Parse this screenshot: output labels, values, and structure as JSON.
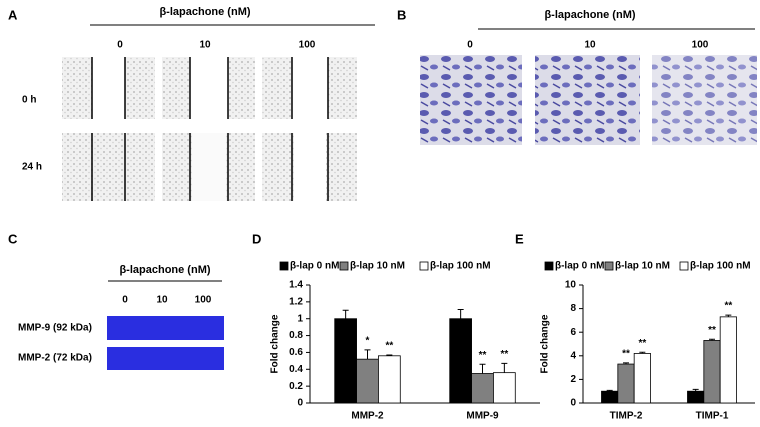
{
  "panels": {
    "A": {
      "label": "A",
      "title": "β-lapachone (nM)",
      "columns": [
        "0",
        "10",
        "100"
      ],
      "rows": [
        "0 h",
        "24 h"
      ]
    },
    "B": {
      "label": "B",
      "title": "β-lapachone (nM)",
      "columns": [
        "0",
        "10",
        "100"
      ]
    },
    "C": {
      "label": "C",
      "title": "β-lapachone (nM)",
      "columns": [
        "0",
        "10",
        "100"
      ],
      "bands": [
        "MMP-9 (92 kDa)",
        "MMP-2 (72 kDa)"
      ]
    }
  },
  "chart_data": [
    {
      "type": "bar",
      "panel_label": "D",
      "ylabel": "Fold change",
      "categories": [
        "MMP-2",
        "MMP-9"
      ],
      "series": [
        {
          "name": "β-lap 0 nM",
          "color": "#000000",
          "values": [
            1,
            1
          ],
          "errors": [
            0.1,
            0.11
          ],
          "significance": [
            null,
            null
          ]
        },
        {
          "name": "β-lap 10 nM",
          "color": "#808080",
          "values": [
            0.52,
            0.35
          ],
          "errors": [
            0.11,
            0.11
          ],
          "significance": [
            "*",
            "**"
          ]
        },
        {
          "name": "β-lap 100 nM",
          "color": "#ffffff",
          "values": [
            0.56,
            0.36
          ],
          "errors": [
            0.01,
            0.11
          ],
          "significance": [
            "**",
            "**"
          ]
        }
      ],
      "ylim": [
        0,
        1.4
      ],
      "yticks": [
        0,
        0.2,
        0.4,
        0.6,
        0.8,
        1,
        1.2,
        1.4
      ]
    },
    {
      "type": "bar",
      "panel_label": "E",
      "ylabel": "Fold change",
      "categories": [
        "TIMP-2",
        "TIMP-1"
      ],
      "series": [
        {
          "name": "β-lap 0 nM",
          "color": "#000000",
          "values": [
            1,
            1
          ],
          "errors": [
            0.07,
            0.15
          ],
          "significance": [
            null,
            null
          ]
        },
        {
          "name": "β-lap 10 nM",
          "color": "#808080",
          "values": [
            3.3,
            5.3
          ],
          "errors": [
            0.1,
            0.1
          ],
          "significance": [
            "**",
            "**"
          ]
        },
        {
          "name": "β-lap 100 nM",
          "color": "#ffffff",
          "values": [
            4.2,
            7.3
          ],
          "errors": [
            0.1,
            0.15
          ],
          "significance": [
            "**",
            "**"
          ]
        }
      ],
      "ylim": [
        0,
        10
      ],
      "yticks": [
        0,
        2,
        4,
        6,
        8,
        10
      ]
    }
  ]
}
